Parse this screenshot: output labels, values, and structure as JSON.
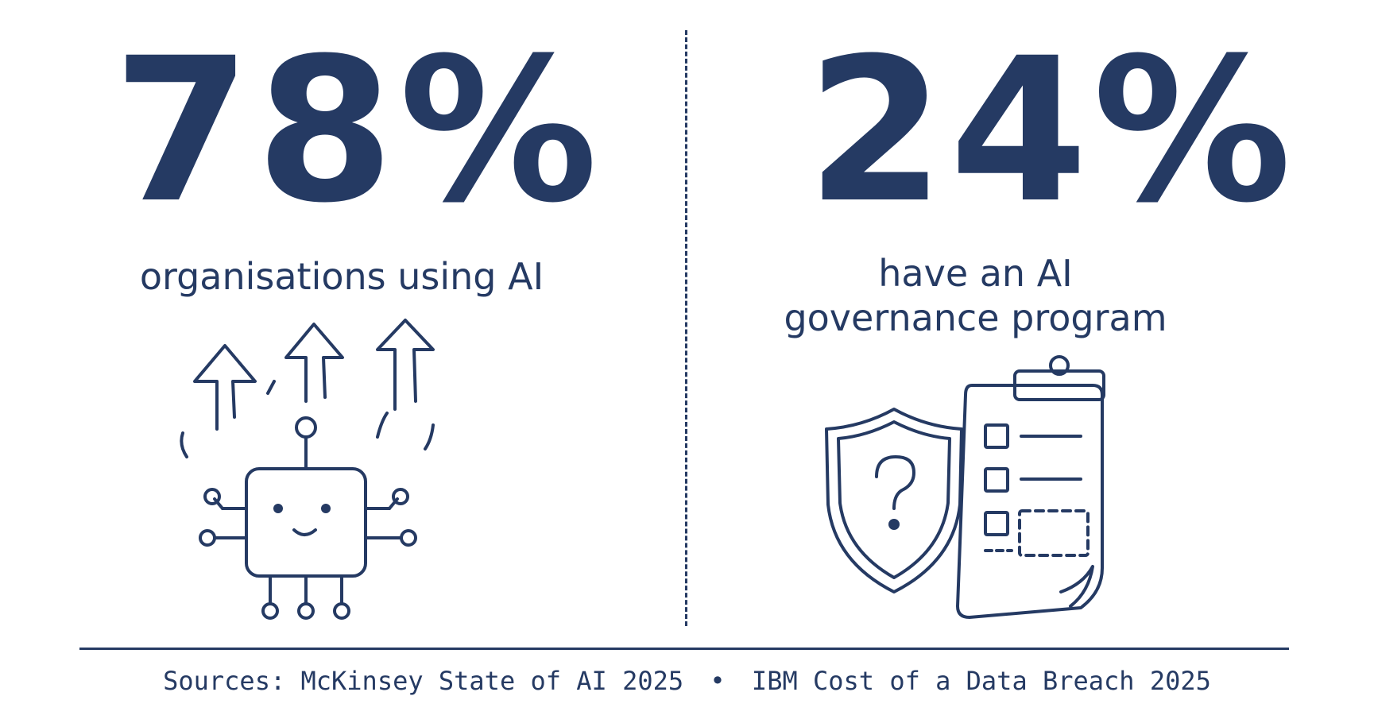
{
  "left_stat": {
    "value": "78%",
    "label": "organisations using AI",
    "illustration_icon": "robot-chip-with-up-arrows-icon"
  },
  "right_stat": {
    "value": "24%",
    "label_line1": "have an AI",
    "label_line2": "governance program",
    "illustration_icon": "shield-question-clipboard-checklist-icon"
  },
  "footer": {
    "prefix": "Sources:",
    "source_1": "McKinsey State of AI 2025",
    "separator": "•",
    "source_2": "IBM Cost of a Data Breach 2025"
  },
  "colors": {
    "ink": "#253a63",
    "background": "#ffffff"
  }
}
